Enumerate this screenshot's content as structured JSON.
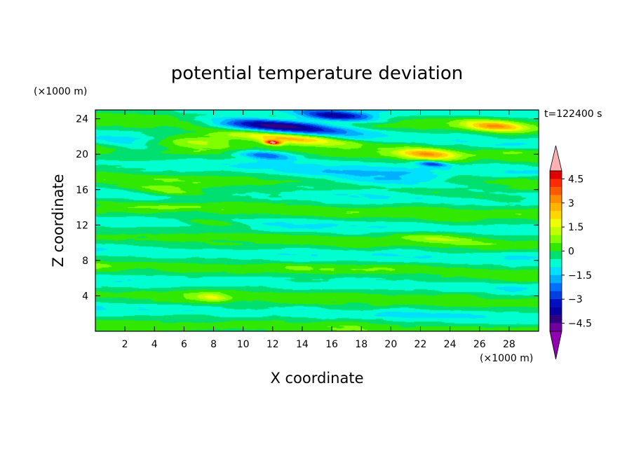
{
  "chart_data": {
    "type": "heatmap",
    "title": "potential temperature deviation",
    "xlabel": "X coordinate",
    "ylabel": "Z coordinate",
    "x_unit": "(×1000 m)",
    "y_unit": "(×1000 m)",
    "time_label": "t=122400 s",
    "xlim": [
      0,
      30
    ],
    "ylim": [
      0,
      25
    ],
    "x_ticks": [
      2,
      4,
      6,
      8,
      10,
      12,
      14,
      16,
      18,
      20,
      22,
      24,
      26,
      28
    ],
    "y_ticks": [
      4,
      8,
      12,
      16,
      20,
      24
    ],
    "colorbar": {
      "levels": [
        -5,
        -4.5,
        -4,
        -3.5,
        -3,
        -2.5,
        -2,
        -1.5,
        -1,
        -0.5,
        0,
        0.5,
        1,
        1.5,
        2,
        2.5,
        3,
        3.5,
        4,
        4.5,
        5
      ],
      "tick_labels": [
        "4.5",
        "3",
        "1.5",
        "0",
        "−1.5",
        "−3",
        "−4.5"
      ],
      "tick_values": [
        4.5,
        3,
        1.5,
        0,
        -1.5,
        -3,
        -4.5
      ],
      "colors": [
        "#ffb0b0",
        "#e00000",
        "#ff2a00",
        "#ff5a00",
        "#ff8c00",
        "#ffb400",
        "#ffd700",
        "#f0ff00",
        "#c0ff00",
        "#80ff00",
        "#30e800",
        "#00e070",
        "#00ffd0",
        "#00e0ff",
        "#00b0ff",
        "#0070ff",
        "#0040e0",
        "#0010c0",
        "#0800a0",
        "#300080",
        "#7000a0",
        "#9000b0"
      ],
      "extend": "both"
    },
    "features": [
      {
        "x": 12.5,
        "z": 23.2,
        "value": -4.5,
        "sx": 4.5,
        "sz": 0.7
      },
      {
        "x": 16.5,
        "z": 24.3,
        "value": -3.5,
        "sx": 2.5,
        "sz": 0.6
      },
      {
        "x": 13.0,
        "z": 21.8,
        "value": 3.5,
        "sx": 4.5,
        "sz": 0.6
      },
      {
        "x": 12.0,
        "z": 21.3,
        "value": 5.0,
        "sx": 0.6,
        "sz": 0.25
      },
      {
        "x": 11.5,
        "z": 19.9,
        "value": -2.5,
        "sx": 2.0,
        "sz": 0.5
      },
      {
        "x": 22.5,
        "z": 20.0,
        "value": 3.0,
        "sx": 2.0,
        "sz": 0.6
      },
      {
        "x": 22.8,
        "z": 18.9,
        "value": -2.5,
        "sx": 1.0,
        "sz": 0.3
      },
      {
        "x": 27.0,
        "z": 23.2,
        "value": 3.0,
        "sx": 2.0,
        "sz": 0.6
      },
      {
        "x": 7.0,
        "z": 21.5,
        "value": 1.5,
        "sx": 3.0,
        "sz": 0.8
      },
      {
        "x": 20.0,
        "z": 17.0,
        "value": -1.5,
        "sx": 6.0,
        "sz": 1.2
      },
      {
        "x": 5.0,
        "z": 15.8,
        "value": 1.5,
        "sx": 3.0,
        "sz": 0.6
      },
      {
        "x": 24.0,
        "z": 15.5,
        "value": 1.2,
        "sx": 4.0,
        "sz": 0.5
      },
      {
        "x": 8.0,
        "z": 12.2,
        "value": 1.2,
        "sx": 2.0,
        "sz": 0.4
      },
      {
        "x": 23.0,
        "z": 10.5,
        "value": 1.2,
        "sx": 3.0,
        "sz": 0.5
      },
      {
        "x": 8.0,
        "z": 3.8,
        "value": 1.2,
        "sx": 1.0,
        "sz": 0.5
      },
      {
        "x": 2.5,
        "z": 21.0,
        "value": -1.2,
        "sx": 2.0,
        "sz": 0.6
      }
    ]
  }
}
